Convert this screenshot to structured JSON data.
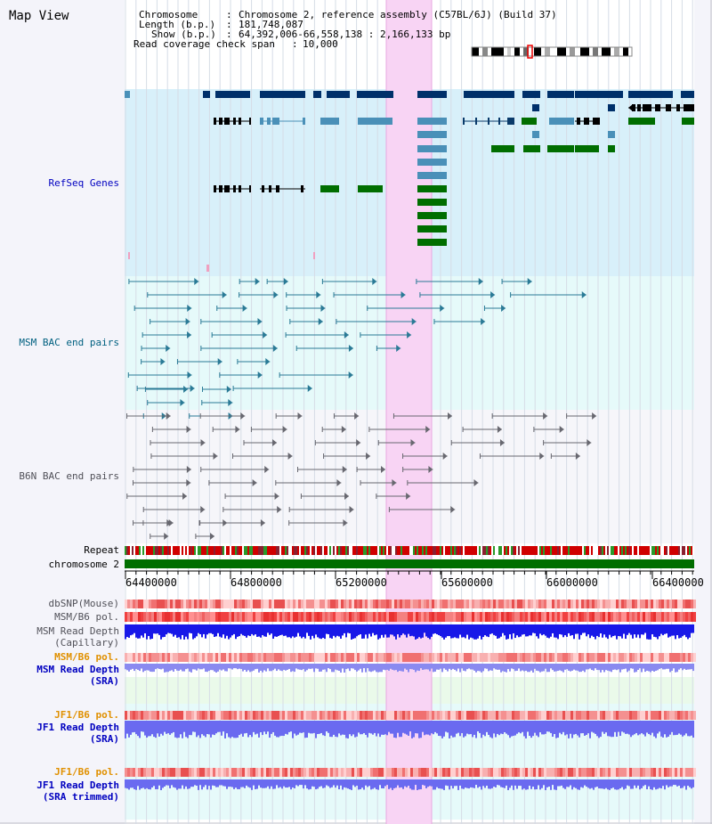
{
  "view": {
    "title": "Map View"
  },
  "header": {
    "chromosome_label": "Chromosome",
    "chromosome_value": "Chromosome 2, reference assembly (C57BL/6J) (Build 37)",
    "length_label": "Length (b.p.)",
    "length_value": "181,748,087",
    "show_label": "Show (b.p.)",
    "show_value": "64,392,006-66,558,138 : 2,166,133 bp",
    "coverage_label": "Read coverage check span",
    "coverage_value": "10,000"
  },
  "tracks": {
    "refseq": "RefSeq Genes",
    "msm_bac": "MSM BAC end pairs",
    "b6n_bac": "B6N BAC end pairs",
    "repeat": "Repeat",
    "chromosome": "chromosome 2",
    "dbsnp": "dbSNP(Mouse)",
    "msm_b6_pol": "MSM/B6 pol.",
    "msm_depth_cap_1": "MSM Read Depth",
    "msm_depth_cap_2": "(Capillary)",
    "msm_b6_pol_2": "MSM/B6 pol.",
    "msm_depth_sra_1": "MSM Read Depth",
    "msm_depth_sra_2": "(SRA)",
    "jf1_b6_pol": "JF1/B6 pol.",
    "jf1_depth_1": "JF1 Read Depth",
    "jf1_depth_2": "(SRA)",
    "jf1_b6_pol_2": "JF1/B6 pol.",
    "jf1_trim_1": "JF1 Read Depth",
    "jf1_trim_2": "(SRA trimmed)"
  },
  "axis": {
    "ticks": [
      "64400000",
      "64800000",
      "65200000",
      "65600000",
      "66000000",
      "66400000"
    ]
  },
  "colors": {
    "refseq_bg": "#d8f0fa",
    "msm_bg": "#e6fafa",
    "b6n_bg": "#f6f6fa",
    "highlight": "#f8d4f4",
    "label_blue": "#0000c0",
    "label_teal": "#006080",
    "label_orange": "#e09000",
    "gene_navy": "#00306a",
    "gene_steel": "#4a90b8",
    "gene_green": "#006e00"
  }
}
